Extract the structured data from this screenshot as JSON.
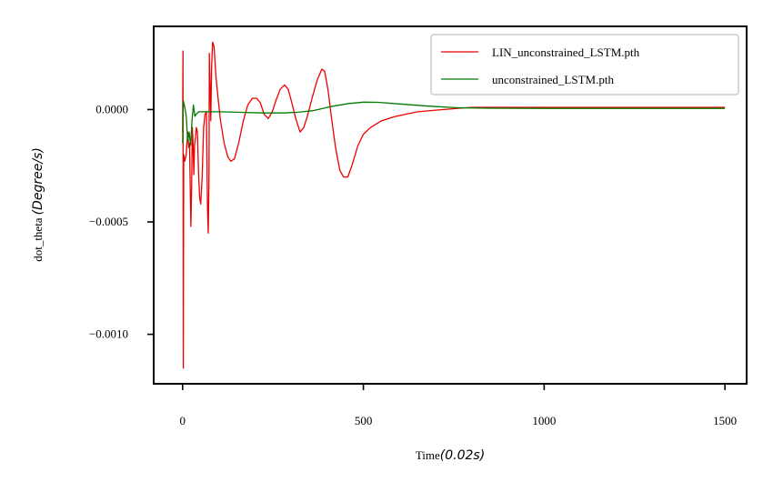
{
  "chart_data": {
    "type": "line",
    "title": "",
    "xlabel": {
      "prefix": "Time",
      "unit": "(0.02s)"
    },
    "ylabel": {
      "prefix": "dot_theta",
      "unit": "(Degree/s)"
    },
    "xlim": [
      -80,
      1560
    ],
    "ylim": [
      -0.00122,
      0.00037
    ],
    "x_ticks": [
      0,
      500,
      1000,
      1500
    ],
    "x_tick_labels": [
      "0",
      "500",
      "1000",
      "1500"
    ],
    "y_ticks": [
      0.0,
      -0.0005,
      -0.001
    ],
    "y_tick_labels": [
      "0.0000",
      "−0.0005",
      "−0.0010"
    ],
    "grid": false,
    "legend_position": "top-right",
    "series": [
      {
        "name": "LIN_unconstrained_LSTM.pth",
        "color": "#ee0000",
        "points": [
          [
            0,
            -0.0001
          ],
          [
            1,
            0.00026
          ],
          [
            2,
            -0.00115
          ],
          [
            3,
            -0.0002
          ],
          [
            6,
            -0.00023
          ],
          [
            10,
            -0.0002
          ],
          [
            14,
            -0.0001
          ],
          [
            17,
            -0.00017
          ],
          [
            19,
            -0.00015
          ],
          [
            21,
            -0.00035
          ],
          [
            23,
            -0.00052
          ],
          [
            25,
            -0.00035
          ],
          [
            27,
            -8e-05
          ],
          [
            29,
            -0.00015
          ],
          [
            31,
            -0.00029
          ],
          [
            33,
            -0.00016
          ],
          [
            36,
            -0.00012
          ],
          [
            38,
            -8e-05
          ],
          [
            41,
            -0.0001
          ],
          [
            44,
            -0.00028
          ],
          [
            47,
            -0.00039
          ],
          [
            50,
            -0.00042
          ],
          [
            54,
            -0.0003
          ],
          [
            58,
            -8e-05
          ],
          [
            62,
            -2e-05
          ],
          [
            66,
            -1e-05
          ],
          [
            69,
            -0.00045
          ],
          [
            71,
            -0.00055
          ],
          [
            73,
            -0.0003
          ],
          [
            74,
            0.00025
          ],
          [
            76,
            0.0001
          ],
          [
            78,
            -5e-05
          ],
          [
            80,
            0.00018
          ],
          [
            83,
            0.0003
          ],
          [
            87,
            0.00028
          ],
          [
            92,
            0.00015
          ],
          [
            98,
            5e-05
          ],
          [
            105,
            -5e-05
          ],
          [
            115,
            -0.00015
          ],
          [
            125,
            -0.00021
          ],
          [
            133,
            -0.00023
          ],
          [
            143,
            -0.00022
          ],
          [
            155,
            -0.00015
          ],
          [
            168,
            -5e-05
          ],
          [
            180,
            2e-05
          ],
          [
            193,
            5e-05
          ],
          [
            205,
            5e-05
          ],
          [
            215,
            3e-05
          ],
          [
            225,
            -2e-05
          ],
          [
            237,
            -4e-05
          ],
          [
            248,
            -1e-05
          ],
          [
            258,
            4e-05
          ],
          [
            270,
            9e-05
          ],
          [
            282,
            0.00011
          ],
          [
            292,
            9e-05
          ],
          [
            302,
            3e-05
          ],
          [
            313,
            -4e-05
          ],
          [
            325,
            -0.0001
          ],
          [
            335,
            -8e-05
          ],
          [
            345,
            -3e-05
          ],
          [
            358,
            5e-05
          ],
          [
            372,
            0.00013
          ],
          [
            385,
            0.00018
          ],
          [
            393,
            0.00017
          ],
          [
            402,
            9e-05
          ],
          [
            412,
            -4e-05
          ],
          [
            423,
            -0.00017
          ],
          [
            435,
            -0.00027
          ],
          [
            445,
            -0.0003
          ],
          [
            457,
            -0.0003
          ],
          [
            470,
            -0.00024
          ],
          [
            485,
            -0.00016
          ],
          [
            500,
            -0.00011
          ],
          [
            520,
            -8e-05
          ],
          [
            550,
            -5e-05
          ],
          [
            590,
            -3e-05
          ],
          [
            650,
            -1e-05
          ],
          [
            720,
            0.0
          ],
          [
            800,
            1e-05
          ],
          [
            900,
            1e-05
          ],
          [
            1000,
            1e-05
          ],
          [
            1200,
            1e-05
          ],
          [
            1500,
            1e-05
          ]
        ]
      },
      {
        "name": "unconstrained_LSTM.pth",
        "color": "#007a00",
        "points": [
          [
            0,
            -0.00015
          ],
          [
            2,
            4e-05
          ],
          [
            6,
            1e-05
          ],
          [
            10,
            -3e-05
          ],
          [
            14,
            -0.00014
          ],
          [
            18,
            -0.0001
          ],
          [
            22,
            -0.00016
          ],
          [
            26,
            -5e-05
          ],
          [
            30,
            2e-05
          ],
          [
            34,
            -3e-05
          ],
          [
            38,
            -2e-05
          ],
          [
            45,
            -1e-05
          ],
          [
            60,
            -1e-05
          ],
          [
            100,
            -1e-05
          ],
          [
            150,
            -1.2e-05
          ],
          [
            220,
            -1.5e-05
          ],
          [
            280,
            -1.5e-05
          ],
          [
            320,
            -1.2e-05
          ],
          [
            360,
            -5e-06
          ],
          [
            410,
            1.3e-05
          ],
          [
            460,
            2.7e-05
          ],
          [
            500,
            3.3e-05
          ],
          [
            540,
            3.2e-05
          ],
          [
            600,
            2.5e-05
          ],
          [
            680,
            1.5e-05
          ],
          [
            760,
            8e-06
          ],
          [
            850,
            6e-06
          ],
          [
            1000,
            5e-06
          ],
          [
            1200,
            5e-06
          ],
          [
            1500,
            5e-06
          ]
        ]
      }
    ]
  }
}
